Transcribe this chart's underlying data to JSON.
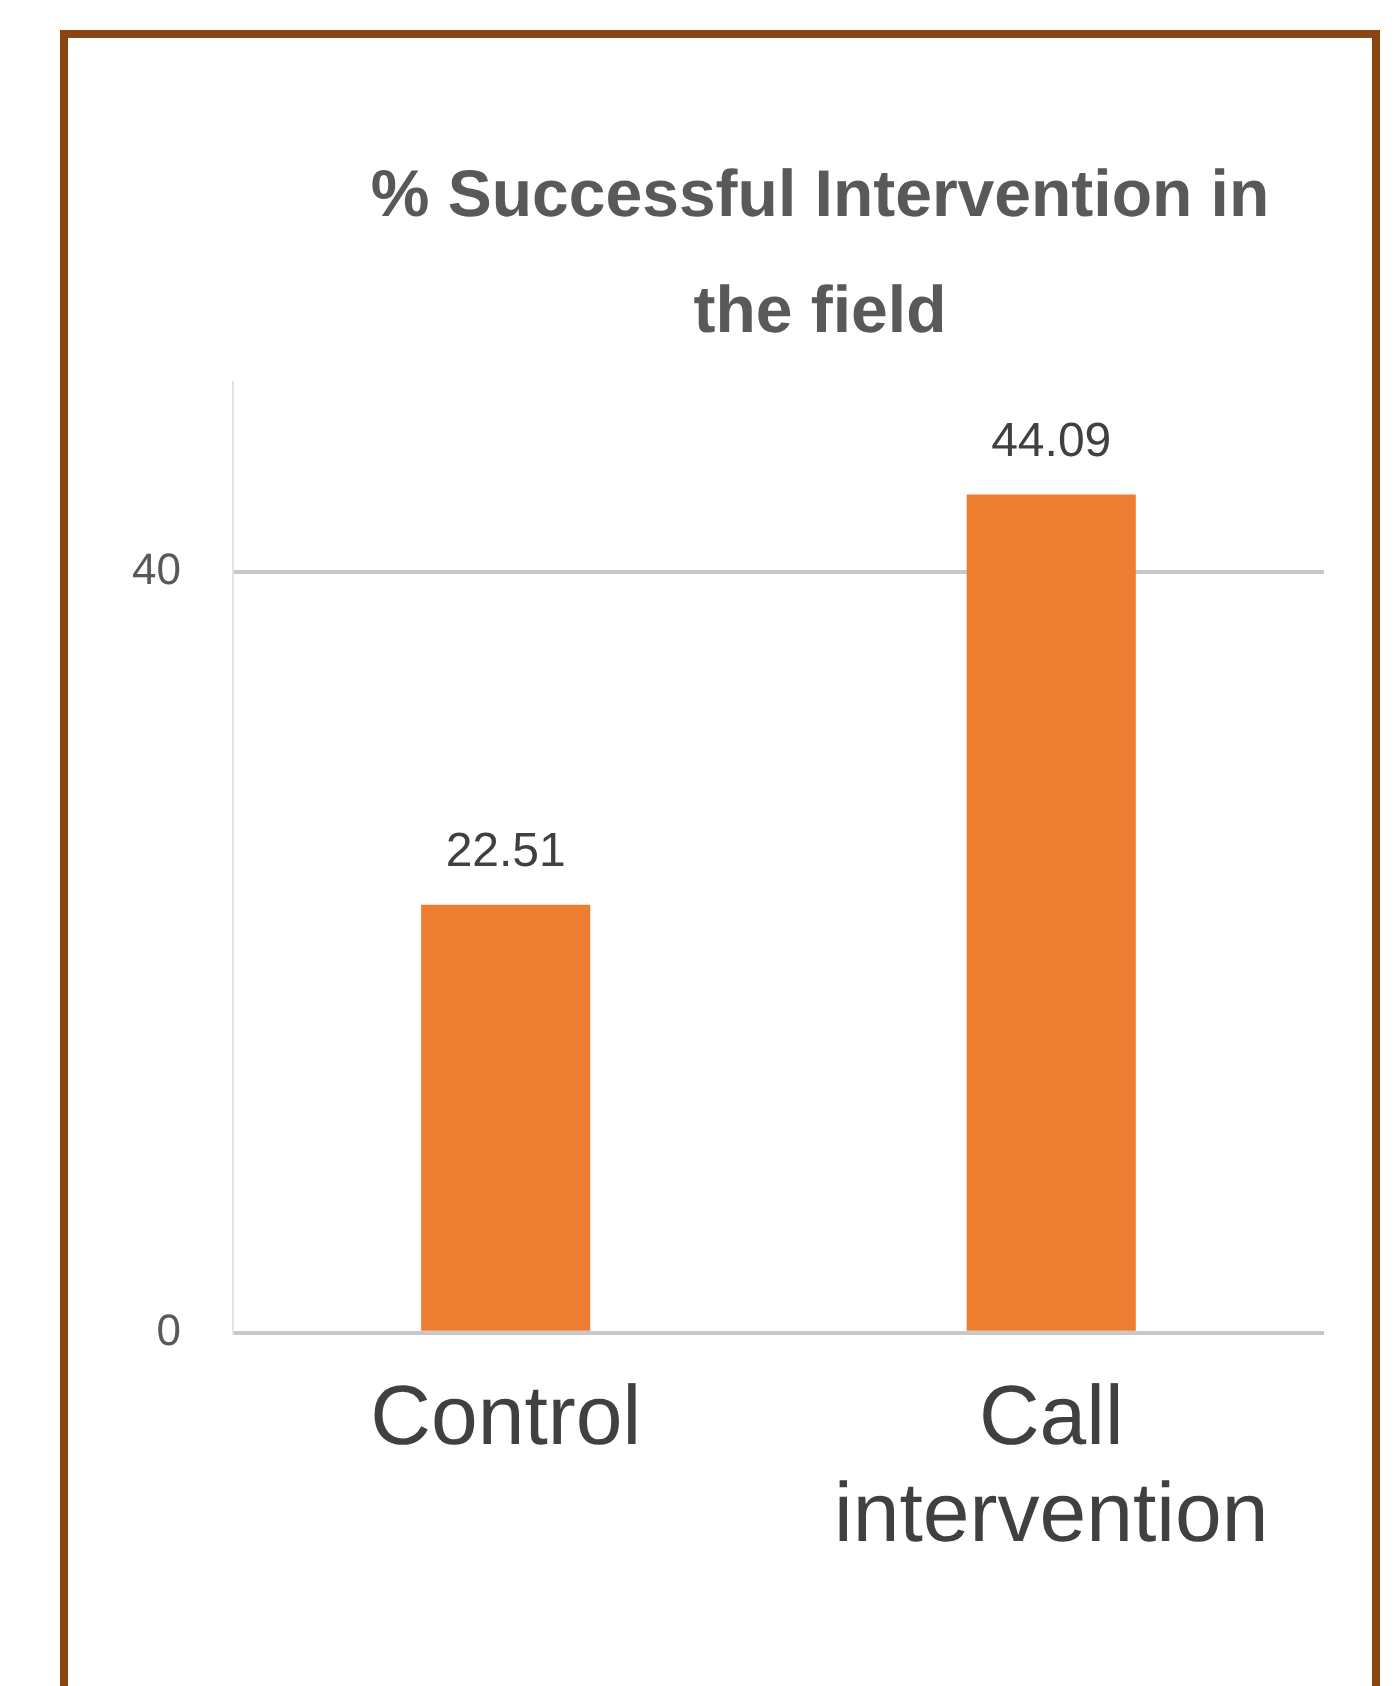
{
  "chart_data": {
    "type": "bar",
    "title": "% Successful Intervention in the field",
    "categories": [
      "Control",
      "Call intervention"
    ],
    "values": [
      22.51,
      44.09
    ],
    "color": "#ed7d31",
    "ylim": [
      0,
      50
    ],
    "yticks": [
      0,
      40
    ],
    "grid": "y",
    "data_labels": true
  }
}
